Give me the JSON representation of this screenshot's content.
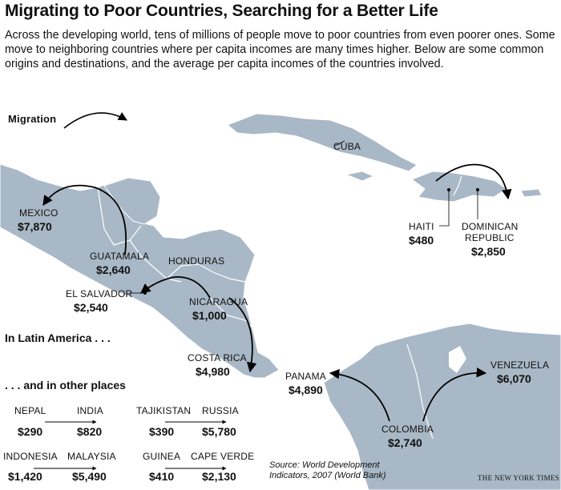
{
  "title": "Migrating to Poor Countries, Searching for a Better Life",
  "intro": "Across the developing world, tens of millions of people move to poor countries from even poorer ones. Some move to neighboring countries where per capita incomes are many times higher. Below are some common origins and destinations, and the average per capita incomes of the countries involved.",
  "legend": {
    "label": "Migration"
  },
  "map_labels": {
    "cuba": "CUBA",
    "honduras": "HONDURAS"
  },
  "countries": {
    "mexico": {
      "name": "MEXICO",
      "income": "$7,870"
    },
    "guatemala": {
      "name": "GUATAMALA",
      "income": "$2,640"
    },
    "el_salvador": {
      "name": "EL SALVADOR",
      "income": "$2,540"
    },
    "nicaragua": {
      "name": "NICARAGUA",
      "income": "$1,000"
    },
    "costa_rica": {
      "name": "COSTA RICA",
      "income": "$4,980"
    },
    "panama": {
      "name": "PANAMA",
      "income": "$4,890"
    },
    "colombia": {
      "name": "COLOMBIA",
      "income": "$2,740"
    },
    "venezuela": {
      "name": "VENEZUELA",
      "income": "$6,070"
    },
    "haiti": {
      "name": "HAITI",
      "income": "$480"
    },
    "dominican_republic": {
      "name_line1": "DOMINICAN",
      "name_line2": "REPUBLIC",
      "income": "$2,850"
    }
  },
  "sections": {
    "latin_america": "In Latin America . . .",
    "other_places": ". . . and in other places"
  },
  "other_places": [
    {
      "from": "NEPAL",
      "from_income": "$290",
      "to": "INDIA",
      "to_income": "$820"
    },
    {
      "from": "TAJIKISTAN",
      "from_income": "$390",
      "to": "RUSSIA",
      "to_income": "$5,780"
    },
    {
      "from": "INDONESIA",
      "from_income": "$1,420",
      "to": "MALAYSIA",
      "to_income": "$5,490"
    },
    {
      "from": "GUINEA",
      "from_income": "$410",
      "to": "CAPE VERDE",
      "to_income": "$2,130"
    }
  ],
  "source": {
    "line1": "Source: World Development",
    "line2": "Indicators, 2007 (World Bank)"
  },
  "credit": "THE NEW YORK TIMES",
  "colors": {
    "land": "#a9b8c6",
    "land_border": "#ffffff",
    "text": "#111111",
    "arrow": "#000000"
  }
}
